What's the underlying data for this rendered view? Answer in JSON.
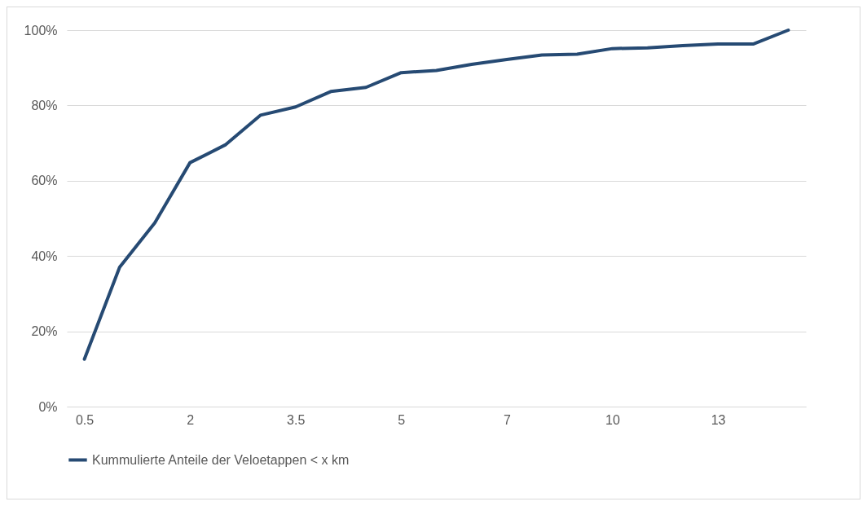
{
  "chart_data": {
    "type": "line",
    "categories": [
      "0.5",
      null,
      null,
      "2",
      null,
      null,
      "3.5",
      null,
      null,
      "5",
      null,
      null,
      "7",
      null,
      null,
      "10",
      null,
      null,
      "13",
      null,
      null
    ],
    "series": [
      {
        "name": "Kummulierte Anteile der Veloetappen < x km",
        "color": "#264a73",
        "values": [
          12.6,
          37.0,
          48.8,
          64.8,
          69.5,
          77.4,
          79.6,
          83.7,
          84.8,
          88.7,
          89.3,
          90.9,
          92.2,
          93.4,
          93.6,
          95.1,
          95.3,
          95.9,
          96.3,
          96.3,
          100
        ]
      }
    ],
    "ylim": [
      0,
      100
    ],
    "yticks": [
      {
        "value": 0,
        "label": "0%"
      },
      {
        "value": 20,
        "label": "20%"
      },
      {
        "value": 40,
        "label": "40%"
      },
      {
        "value": 60,
        "label": "60%"
      },
      {
        "value": 80,
        "label": "80%"
      },
      {
        "value": 100,
        "label": "100%"
      }
    ],
    "grid": "y",
    "legend": "bottom",
    "marker": "none",
    "line_style": "solid"
  }
}
